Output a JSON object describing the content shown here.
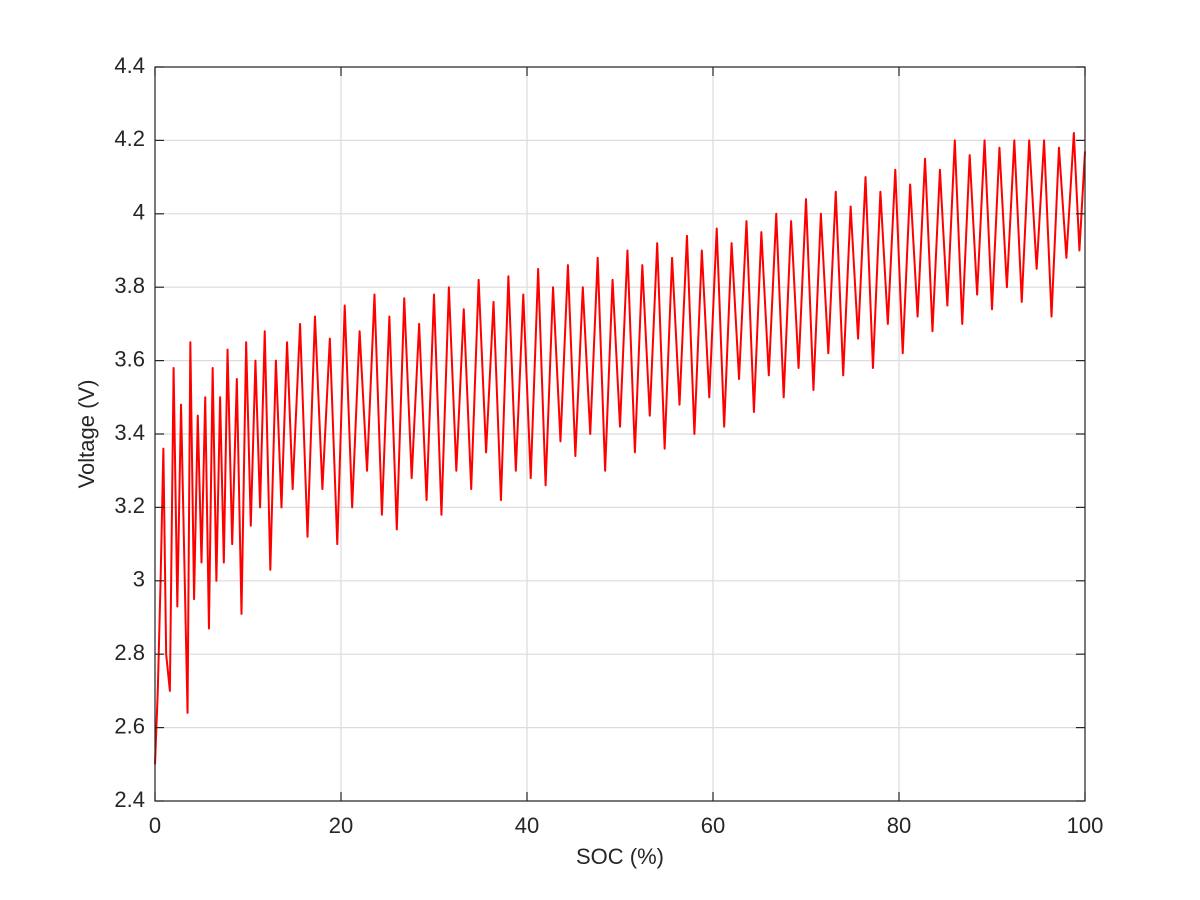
{
  "chart_data": {
    "type": "line",
    "xlabel": "SOC (%)",
    "ylabel": "Voltage (V)",
    "xlim": [
      0,
      100
    ],
    "xticks": [
      0,
      20,
      40,
      60,
      80,
      100
    ],
    "ylim": [
      2.4,
      4.4
    ],
    "yticks": [
      2.4,
      2.6,
      2.8,
      3,
      3.2,
      3.4,
      3.6,
      3.8,
      4,
      4.2,
      4.4
    ],
    "grid": true,
    "x": [
      0,
      0.3,
      0.6,
      0.9,
      1.2,
      1.6,
      2.0,
      2.4,
      2.8,
      3.2,
      3.5,
      3.8,
      4.2,
      4.6,
      5.0,
      5.4,
      5.8,
      6.2,
      6.6,
      7.0,
      7.4,
      7.8,
      8.3,
      8.8,
      9.3,
      9.8,
      10.3,
      10.8,
      11.3,
      11.8,
      12.4,
      13.0,
      13.6,
      14.2,
      14.8,
      15.6,
      16.4,
      17.2,
      18.0,
      18.8,
      19.6,
      20.4,
      21.2,
      22.0,
      22.8,
      23.6,
      24.4,
      25.2,
      26.0,
      26.8,
      27.6,
      28.4,
      29.2,
      30.0,
      30.8,
      31.6,
      32.4,
      33.2,
      34.0,
      34.8,
      35.6,
      36.4,
      37.2,
      38.0,
      38.8,
      39.6,
      40.4,
      41.2,
      42.0,
      42.8,
      43.6,
      44.4,
      45.2,
      46.0,
      46.8,
      47.6,
      48.4,
      49.2,
      50.0,
      50.8,
      51.6,
      52.4,
      53.2,
      54.0,
      54.8,
      55.6,
      56.4,
      57.2,
      58.0,
      58.8,
      59.6,
      60.4,
      61.2,
      62.0,
      62.8,
      63.6,
      64.4,
      65.2,
      66.0,
      66.8,
      67.6,
      68.4,
      69.2,
      70.0,
      70.8,
      71.6,
      72.4,
      73.2,
      74.0,
      74.8,
      75.6,
      76.4,
      77.2,
      78.0,
      78.8,
      79.6,
      80.4,
      81.2,
      82.0,
      82.8,
      83.6,
      84.4,
      85.2,
      86.0,
      86.8,
      87.6,
      88.4,
      89.2,
      90.0,
      90.8,
      91.6,
      92.4,
      93.2,
      94.0,
      94.8,
      95.6,
      96.4,
      97.2,
      98.0,
      98.8,
      99.4,
      100
    ],
    "series": [
      {
        "color": "#ff0000",
        "values": [
          2.5,
          2.7,
          3.0,
          3.36,
          2.8,
          2.7,
          3.58,
          2.93,
          3.48,
          3.0,
          2.64,
          3.65,
          2.95,
          3.45,
          3.05,
          3.5,
          2.87,
          3.58,
          3.0,
          3.5,
          3.05,
          3.63,
          3.1,
          3.55,
          2.91,
          3.65,
          3.15,
          3.6,
          3.2,
          3.68,
          3.03,
          3.6,
          3.2,
          3.65,
          3.25,
          3.7,
          3.12,
          3.72,
          3.25,
          3.66,
          3.1,
          3.75,
          3.2,
          3.68,
          3.3,
          3.78,
          3.18,
          3.72,
          3.14,
          3.77,
          3.28,
          3.7,
          3.22,
          3.78,
          3.18,
          3.8,
          3.3,
          3.74,
          3.25,
          3.82,
          3.35,
          3.76,
          3.22,
          3.83,
          3.3,
          3.78,
          3.28,
          3.85,
          3.26,
          3.8,
          3.38,
          3.86,
          3.34,
          3.8,
          3.4,
          3.88,
          3.3,
          3.82,
          3.42,
          3.9,
          3.35,
          3.86,
          3.45,
          3.92,
          3.36,
          3.88,
          3.48,
          3.94,
          3.4,
          3.9,
          3.5,
          3.96,
          3.42,
          3.92,
          3.55,
          3.98,
          3.46,
          3.95,
          3.56,
          4.0,
          3.5,
          3.98,
          3.58,
          4.04,
          3.52,
          4.0,
          3.62,
          4.06,
          3.56,
          4.02,
          3.66,
          4.1,
          3.58,
          4.06,
          3.7,
          4.12,
          3.62,
          4.08,
          3.72,
          4.15,
          3.68,
          4.12,
          3.75,
          4.2,
          3.7,
          4.16,
          3.78,
          4.2,
          3.74,
          4.18,
          3.8,
          4.2,
          3.76,
          4.2,
          3.85,
          4.2,
          3.72,
          4.18,
          3.88,
          4.22,
          3.9,
          4.17
        ]
      }
    ]
  }
}
